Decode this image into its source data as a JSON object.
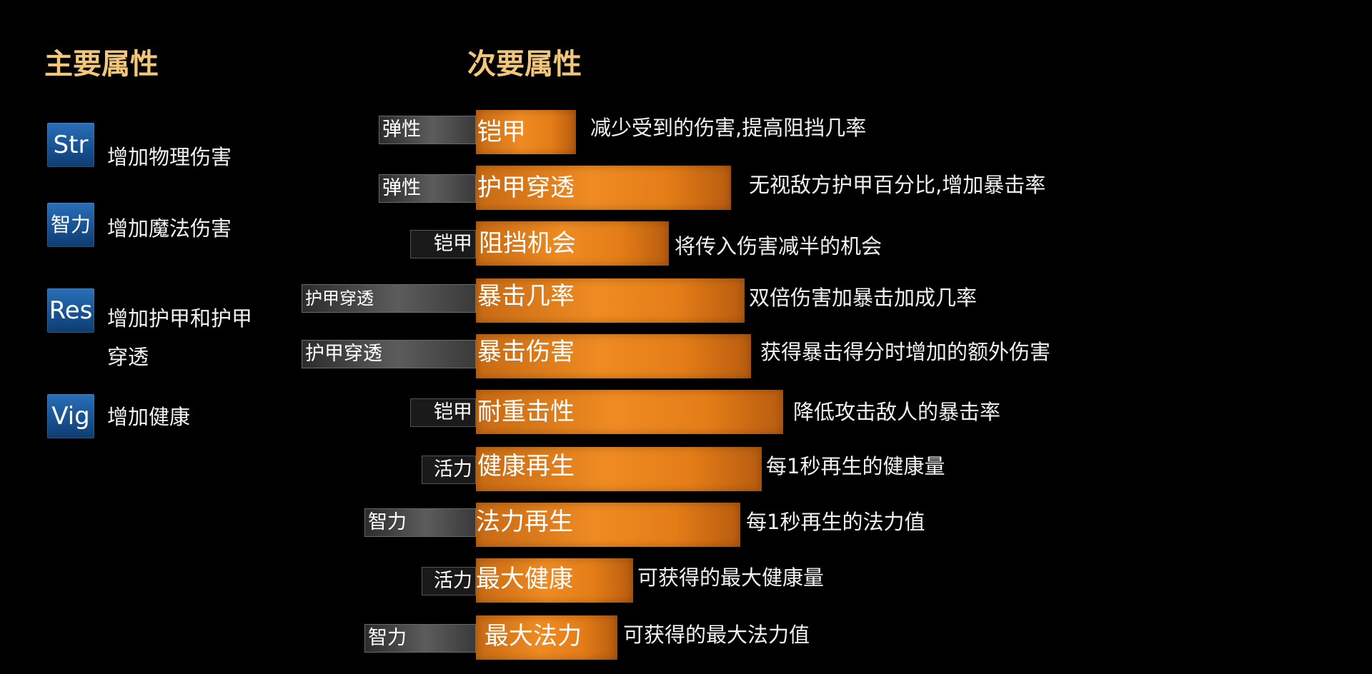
{
  "primary": {
    "title": "主要属性",
    "items": [
      {
        "icon_label": "Str",
        "description": "增加物理伤害"
      },
      {
        "icon_label": "智力",
        "description": "增加魔法伤害"
      },
      {
        "icon_label": "Res",
        "description": "增加护甲和护甲",
        "description_line2": "穿透"
      },
      {
        "icon_label": "Vig",
        "description": "增加健康"
      }
    ]
  },
  "secondary": {
    "title": "次要属性",
    "items": [
      {
        "source": "弹性",
        "name": "铠甲",
        "description": "减少受到的伤害,提高阻挡几率"
      },
      {
        "source": "弹性",
        "name": "护甲穿透",
        "description": "无视敌方护甲百分比,增加暴击率"
      },
      {
        "source": "铠甲",
        "name": "阻挡机会",
        "description": "将传入伤害减半的机会"
      },
      {
        "source": "护甲穿透",
        "name": "暴击几率",
        "description": "双倍伤害加暴击加成几率"
      },
      {
        "source": "护甲穿透",
        "name": "暴击伤害",
        "description": "获得暴击得分时增加的额外伤害"
      },
      {
        "source": "铠甲",
        "name": "耐重击性",
        "description": "降低攻击敌人的暴击率"
      },
      {
        "source": "活力",
        "name": "健康再生",
        "description": "每1秒再生的健康量"
      },
      {
        "source": "智力",
        "name": "法力再生",
        "description": "每1秒再生的法力值"
      },
      {
        "source": "活力",
        "name": "最大健康",
        "description": "可获得的最大健康量"
      },
      {
        "source": "智力",
        "name": "最大法力",
        "description": "可获得的最大法力值"
      }
    ]
  },
  "colors": {
    "background": "#000000",
    "title": "#f3c77a",
    "bar": "#ef8b22",
    "icon": "#1f5fa3"
  }
}
